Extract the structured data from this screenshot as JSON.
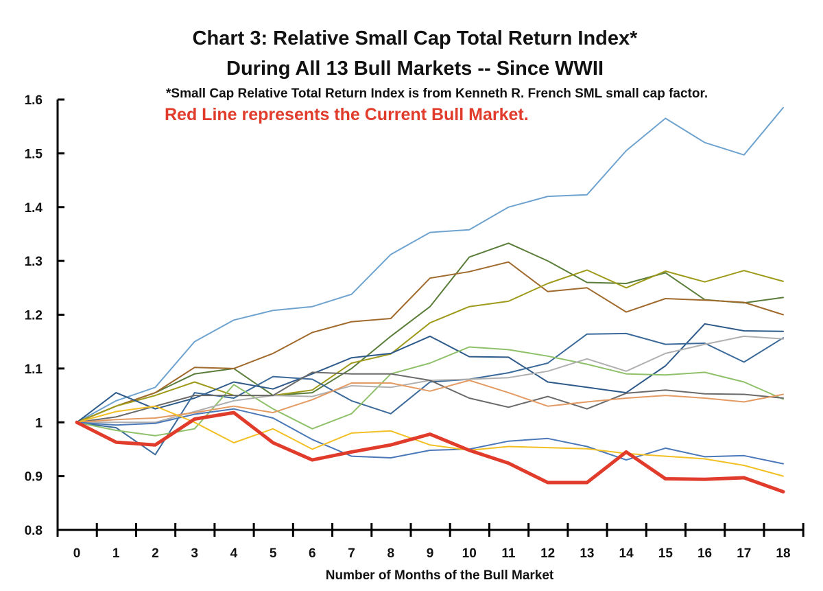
{
  "chart_data": {
    "type": "line",
    "title": "Chart 3: Relative Small Cap Total Return Index*",
    "subtitle": "During All 13 Bull Markets -- Since WWII",
    "note": "*Small Cap Relative Total Return Index is from Kenneth R. French SML small cap factor.",
    "annotation": "Red Line represents the Current Bull Market.",
    "xlabel": "Number of Months of the Bull Market",
    "ylabel": "",
    "x": [
      0,
      1,
      2,
      3,
      4,
      5,
      6,
      7,
      8,
      9,
      10,
      11,
      12,
      13,
      14,
      15,
      16,
      17,
      18
    ],
    "xlim": [
      0,
      18
    ],
    "ylim": [
      0.8,
      1.6
    ],
    "y_ticks": [
      "0.8",
      "0.9",
      "1",
      "1.1",
      "1.2",
      "1.3",
      "1.4",
      "1.5",
      "1.6"
    ],
    "x_ticks": [
      "0",
      "1",
      "2",
      "3",
      "4",
      "5",
      "6",
      "7",
      "8",
      "9",
      "10",
      "11",
      "12",
      "13",
      "14",
      "15",
      "16",
      "17",
      "18"
    ],
    "grid": false,
    "series": [
      {
        "color": "#6fa3cf",
        "width": 2,
        "values": [
          1.0,
          1.04,
          1.065,
          1.15,
          1.19,
          1.208,
          1.215,
          1.238,
          1.312,
          1.353,
          1.358,
          1.4,
          1.42,
          1.423,
          1.505,
          1.565,
          1.52,
          1.497,
          1.585
        ]
      },
      {
        "color": "#5a7d3a",
        "width": 2,
        "values": [
          1.0,
          1.03,
          1.055,
          1.09,
          1.1,
          1.05,
          1.055,
          1.1,
          1.16,
          1.215,
          1.307,
          1.333,
          1.3,
          1.26,
          1.258,
          1.278,
          1.228,
          1.222,
          1.232
        ]
      },
      {
        "color": "#a06a2c",
        "width": 2,
        "values": [
          1.0,
          1.03,
          1.055,
          1.102,
          1.1,
          1.128,
          1.167,
          1.187,
          1.193,
          1.268,
          1.28,
          1.298,
          1.243,
          1.25,
          1.205,
          1.23,
          1.227,
          1.223,
          1.2
        ]
      },
      {
        "color": "#9e9a1a",
        "width": 2,
        "values": [
          1.0,
          1.03,
          1.05,
          1.075,
          1.05,
          1.05,
          1.06,
          1.11,
          1.127,
          1.185,
          1.215,
          1.225,
          1.258,
          1.283,
          1.25,
          1.281,
          1.261,
          1.282,
          1.262
        ]
      },
      {
        "color": "#2e5a8a",
        "width": 2,
        "values": [
          1.0,
          1.055,
          1.025,
          1.045,
          1.075,
          1.062,
          1.09,
          1.12,
          1.128,
          1.16,
          1.122,
          1.121,
          1.075,
          1.065,
          1.055,
          1.105,
          1.183,
          1.17,
          1.169
        ]
      },
      {
        "color": "#3b6a9a",
        "width": 2,
        "values": [
          1.0,
          0.99,
          0.94,
          1.055,
          1.045,
          1.085,
          1.08,
          1.04,
          1.016,
          1.075,
          1.08,
          1.092,
          1.11,
          1.164,
          1.165,
          1.145,
          1.147,
          1.112,
          1.157
        ]
      },
      {
        "color": "#8fc06a",
        "width": 2,
        "values": [
          1.0,
          0.985,
          0.975,
          0.988,
          1.07,
          1.025,
          0.988,
          1.016,
          1.09,
          1.11,
          1.14,
          1.135,
          1.123,
          1.108,
          1.09,
          1.088,
          1.093,
          1.075,
          1.043
        ]
      },
      {
        "color": "#b0b0b0",
        "width": 2,
        "values": [
          1.0,
          1.0,
          1.0,
          1.02,
          1.04,
          1.05,
          1.048,
          1.068,
          1.065,
          1.078,
          1.08,
          1.083,
          1.095,
          1.118,
          1.095,
          1.128,
          1.145,
          1.16,
          1.155
        ]
      },
      {
        "color": "#6a6a6a",
        "width": 2,
        "values": [
          1.0,
          1.01,
          1.03,
          1.05,
          1.05,
          1.05,
          1.093,
          1.09,
          1.09,
          1.078,
          1.045,
          1.028,
          1.048,
          1.025,
          1.054,
          1.06,
          1.053,
          1.052,
          1.045
        ]
      },
      {
        "color": "#e39a63",
        "width": 2,
        "values": [
          1.0,
          1.005,
          1.008,
          1.018,
          1.03,
          1.018,
          1.042,
          1.073,
          1.073,
          1.058,
          1.078,
          1.055,
          1.03,
          1.038,
          1.045,
          1.05,
          1.045,
          1.038,
          1.052
        ]
      },
      {
        "color": "#4a78b8",
        "width": 2,
        "values": [
          1.0,
          0.995,
          0.998,
          1.015,
          1.025,
          1.008,
          0.968,
          0.937,
          0.934,
          0.948,
          0.95,
          0.965,
          0.97,
          0.955,
          0.93,
          0.952,
          0.936,
          0.938,
          0.923
        ]
      },
      {
        "color": "#f2c025",
        "width": 2,
        "values": [
          1.0,
          1.02,
          1.03,
          1.0,
          0.962,
          0.988,
          0.95,
          0.98,
          0.984,
          0.958,
          0.948,
          0.955,
          0.953,
          0.951,
          0.942,
          0.937,
          0.932,
          0.92,
          0.9
        ]
      },
      {
        "color": "#e03b2b",
        "width": 5,
        "values": [
          1.0,
          0.963,
          0.958,
          1.006,
          1.018,
          0.962,
          0.93,
          0.945,
          0.958,
          0.978,
          0.948,
          0.924,
          0.888,
          0.888,
          0.945,
          0.895,
          0.894,
          0.897,
          0.871
        ]
      }
    ]
  }
}
